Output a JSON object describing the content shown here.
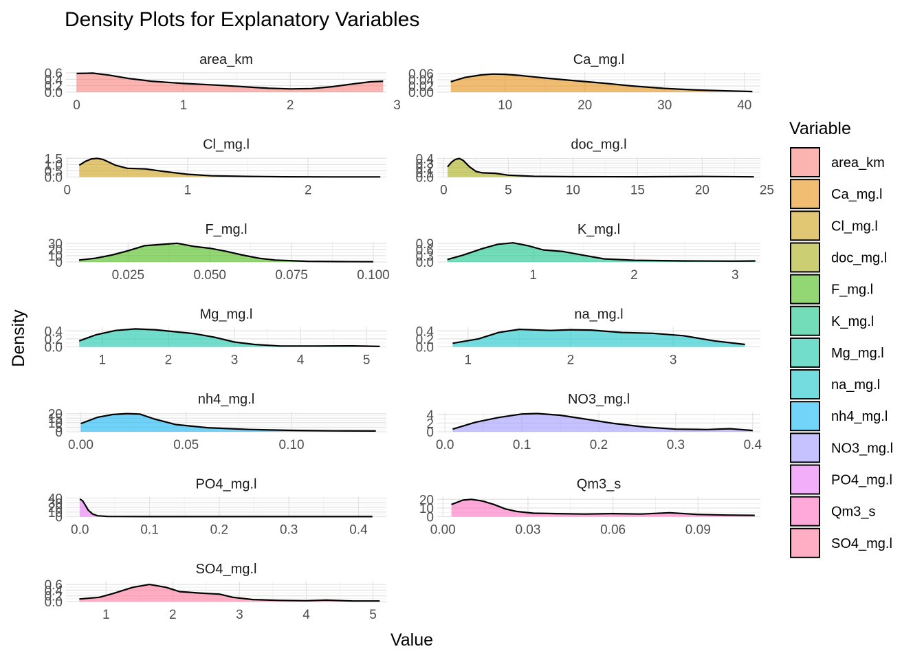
{
  "chart_data": {
    "type": "area",
    "title": "Density Plots for Explanatory Variables",
    "xlabel": "Value",
    "ylabel": "Density",
    "legend": {
      "title": "Variable",
      "position": "right"
    },
    "grid": true,
    "panels": [
      {
        "name": "area_km",
        "color": "#F8766D",
        "xlim": [
          -0.1,
          2.9
        ],
        "ylim": [
          0,
          0.62
        ],
        "xticks": [
          {
            "v": 0,
            "label": "0"
          },
          {
            "v": 1,
            "label": "1"
          },
          {
            "v": 2,
            "label": "2"
          },
          {
            "v": 3,
            "label": "3"
          }
        ],
        "yticks": [
          {
            "v": 0,
            "label": "0.0"
          },
          {
            "v": 0.2,
            "label": "0.2"
          },
          {
            "v": 0.4,
            "label": "0.4"
          },
          {
            "v": 0.6,
            "label": "0.6"
          }
        ],
        "x": [
          0,
          0.15,
          0.3,
          0.5,
          0.7,
          1.0,
          1.3,
          1.6,
          1.8,
          2.0,
          2.2,
          2.4,
          2.6,
          2.75,
          2.87
        ],
        "y": [
          0.58,
          0.59,
          0.53,
          0.42,
          0.34,
          0.27,
          0.22,
          0.16,
          0.12,
          0.1,
          0.11,
          0.17,
          0.26,
          0.32,
          0.34
        ]
      },
      {
        "name": "Ca_mg.l",
        "color": "#E58700",
        "xlim": [
          1.5,
          42
        ],
        "ylim": [
          0,
          0.065
        ],
        "xticks": [
          {
            "v": 10,
            "label": "10"
          },
          {
            "v": 20,
            "label": "20"
          },
          {
            "v": 30,
            "label": "30"
          },
          {
            "v": 40,
            "label": "40"
          }
        ],
        "yticks": [
          {
            "v": 0,
            "label": "0.00"
          },
          {
            "v": 0.02,
            "label": "0.02"
          },
          {
            "v": 0.04,
            "label": "0.04"
          },
          {
            "v": 0.06,
            "label": "0.06"
          }
        ],
        "x": [
          3.2,
          5,
          7,
          8.5,
          10,
          12,
          15,
          18,
          22,
          26,
          30,
          34,
          38,
          41
        ],
        "y": [
          0.034,
          0.048,
          0.056,
          0.059,
          0.058,
          0.054,
          0.046,
          0.039,
          0.03,
          0.02,
          0.012,
          0.007,
          0.004,
          0.002
        ]
      },
      {
        "name": "Cl_mg.l",
        "color": "#C99800",
        "xlim": [
          -0.01,
          2.65
        ],
        "ylim": [
          0,
          1.6
        ],
        "xticks": [
          {
            "v": 0,
            "label": "0"
          },
          {
            "v": 1,
            "label": "1"
          },
          {
            "v": 2,
            "label": "2"
          }
        ],
        "yticks": [
          {
            "v": 0,
            "label": "0.0"
          },
          {
            "v": 0.5,
            "label": "0.5"
          },
          {
            "v": 1.0,
            "label": "1.0"
          },
          {
            "v": 1.5,
            "label": "1.5"
          }
        ],
        "x": [
          0.1,
          0.15,
          0.2,
          0.25,
          0.3,
          0.4,
          0.5,
          0.65,
          0.8,
          1.0,
          1.2,
          1.5,
          1.8,
          2.2,
          2.6
        ],
        "y": [
          0.95,
          1.25,
          1.45,
          1.5,
          1.4,
          0.95,
          0.7,
          0.65,
          0.45,
          0.22,
          0.1,
          0.05,
          0.02,
          0.01,
          0.01
        ]
      },
      {
        "name": "doc_mg.l",
        "color": "#A3A500",
        "xlim": [
          -0.5,
          24.5
        ],
        "ylim": [
          0,
          0.43
        ],
        "xticks": [
          {
            "v": 0,
            "label": "0"
          },
          {
            "v": 5,
            "label": "5"
          },
          {
            "v": 10,
            "label": "10"
          },
          {
            "v": 15,
            "label": "15"
          },
          {
            "v": 20,
            "label": "20"
          },
          {
            "v": 25,
            "label": "25"
          }
        ],
        "yticks": [
          {
            "v": 0,
            "label": "0.0"
          },
          {
            "v": 0.1,
            "label": "0.1"
          },
          {
            "v": 0.2,
            "label": "0.2"
          },
          {
            "v": 0.3,
            "label": "0.3"
          },
          {
            "v": 0.4,
            "label": "0.4"
          }
        ],
        "x": [
          0.3,
          0.6,
          0.9,
          1.2,
          1.5,
          2.0,
          2.5,
          3.0,
          4.0,
          5.0,
          7.0,
          10.0,
          15.0,
          20.0,
          24.0
        ],
        "y": [
          0.22,
          0.32,
          0.38,
          0.4,
          0.36,
          0.22,
          0.12,
          0.09,
          0.08,
          0.04,
          0.015,
          0.008,
          0.006,
          0.012,
          0.004
        ]
      },
      {
        "name": "F_mg.l",
        "color": "#39B600",
        "xlim": [
          0.006,
          0.104
        ],
        "ylim": [
          0,
          32
        ],
        "xticks": [
          {
            "v": 0.025,
            "label": "0.025"
          },
          {
            "v": 0.05,
            "label": "0.050"
          },
          {
            "v": 0.075,
            "label": "0.075"
          },
          {
            "v": 0.1,
            "label": "0.100"
          }
        ],
        "yticks": [
          {
            "v": 0,
            "label": "0"
          },
          {
            "v": 10,
            "label": "10"
          },
          {
            "v": 20,
            "label": "20"
          },
          {
            "v": 30,
            "label": "30"
          }
        ],
        "x": [
          0.01,
          0.015,
          0.02,
          0.025,
          0.03,
          0.035,
          0.04,
          0.045,
          0.05,
          0.055,
          0.06,
          0.065,
          0.07,
          0.08,
          0.09,
          0.1
        ],
        "y": [
          3,
          6,
          11,
          18,
          26,
          28,
          30,
          25,
          22,
          17,
          11,
          6,
          3,
          1,
          0.5,
          0.3
        ]
      },
      {
        "name": "K_mg.l",
        "color": "#00BF7D",
        "xlim": [
          0.05,
          3.25
        ],
        "ylim": [
          0,
          0.96
        ],
        "xticks": [
          {
            "v": 1,
            "label": "1"
          },
          {
            "v": 2,
            "label": "2"
          },
          {
            "v": 3,
            "label": "3"
          }
        ],
        "yticks": [
          {
            "v": 0,
            "label": "0.0"
          },
          {
            "v": 0.3,
            "label": "0.3"
          },
          {
            "v": 0.6,
            "label": "0.6"
          },
          {
            "v": 0.9,
            "label": "0.9"
          }
        ],
        "x": [
          0.15,
          0.3,
          0.5,
          0.65,
          0.8,
          0.95,
          1.1,
          1.3,
          1.5,
          1.7,
          2.0,
          2.5,
          3.0,
          3.2
        ],
        "y": [
          0.12,
          0.32,
          0.65,
          0.85,
          0.92,
          0.78,
          0.58,
          0.5,
          0.32,
          0.15,
          0.08,
          0.05,
          0.04,
          0.05
        ]
      },
      {
        "name": "Mg_mg.l",
        "color": "#00C1A3",
        "xlim": [
          0.45,
          5.3
        ],
        "ylim": [
          0,
          0.5
        ],
        "xticks": [
          {
            "v": 1,
            "label": "1"
          },
          {
            "v": 2,
            "label": "2"
          },
          {
            "v": 3,
            "label": "3"
          },
          {
            "v": 4,
            "label": "4"
          },
          {
            "v": 5,
            "label": "5"
          }
        ],
        "yticks": [
          {
            "v": 0,
            "label": "0.0"
          },
          {
            "v": 0.2,
            "label": "0.2"
          },
          {
            "v": 0.4,
            "label": "0.4"
          }
        ],
        "x": [
          0.65,
          0.9,
          1.2,
          1.5,
          1.8,
          2.1,
          2.4,
          2.7,
          3.0,
          3.3,
          3.7,
          4.2,
          4.8,
          5.2
        ],
        "y": [
          0.15,
          0.3,
          0.41,
          0.45,
          0.43,
          0.38,
          0.33,
          0.24,
          0.12,
          0.06,
          0.02,
          0.02,
          0.025,
          0.01
        ]
      },
      {
        "name": "na_mg.l",
        "color": "#00BFC4",
        "xlim": [
          0.7,
          3.85
        ],
        "ylim": [
          0,
          0.5
        ],
        "xticks": [
          {
            "v": 1,
            "label": "1"
          },
          {
            "v": 2,
            "label": "2"
          },
          {
            "v": 3,
            "label": "3"
          }
        ],
        "yticks": [
          {
            "v": 0,
            "label": "0.0"
          },
          {
            "v": 0.2,
            "label": "0.2"
          },
          {
            "v": 0.4,
            "label": "0.4"
          }
        ],
        "x": [
          0.85,
          1.1,
          1.3,
          1.5,
          1.8,
          2.0,
          2.2,
          2.5,
          2.8,
          3.1,
          3.4,
          3.7
        ],
        "y": [
          0.09,
          0.2,
          0.36,
          0.44,
          0.41,
          0.43,
          0.42,
          0.36,
          0.34,
          0.28,
          0.15,
          0.06
        ]
      },
      {
        "name": "nh4_mg.l",
        "color": "#00B0F6",
        "xlim": [
          -0.007,
          0.145
        ],
        "ylim": [
          0,
          22
        ],
        "xticks": [
          {
            "v": 0,
            "label": "0.00"
          },
          {
            "v": 0.05,
            "label": "0.05"
          },
          {
            "v": 0.1,
            "label": "0.10"
          }
        ],
        "yticks": [
          {
            "v": 0,
            "label": "0"
          },
          {
            "v": 5,
            "label": "5"
          },
          {
            "v": 10,
            "label": "10"
          },
          {
            "v": 15,
            "label": "15"
          },
          {
            "v": 20,
            "label": "20"
          }
        ],
        "x": [
          0,
          0.008,
          0.015,
          0.022,
          0.028,
          0.035,
          0.045,
          0.06,
          0.08,
          0.1,
          0.12,
          0.14
        ],
        "y": [
          9,
          16,
          19,
          20,
          19.5,
          14,
          8,
          4.5,
          2.5,
          1.5,
          1,
          0.8
        ]
      },
      {
        "name": "NO3_mg.l",
        "color": "#9590FF",
        "xlim": [
          -0.01,
          0.41
        ],
        "ylim": [
          0,
          4.6
        ],
        "xticks": [
          {
            "v": 0,
            "label": "0.0"
          },
          {
            "v": 0.1,
            "label": "0.1"
          },
          {
            "v": 0.2,
            "label": "0.2"
          },
          {
            "v": 0.3,
            "label": "0.3"
          },
          {
            "v": 0.4,
            "label": "0.4"
          }
        ],
        "yticks": [
          {
            "v": 0,
            "label": "0"
          },
          {
            "v": 2,
            "label": "2"
          },
          {
            "v": 4,
            "label": "4"
          }
        ],
        "x": [
          0.01,
          0.04,
          0.07,
          0.1,
          0.12,
          0.15,
          0.18,
          0.22,
          0.26,
          0.3,
          0.34,
          0.37,
          0.4
        ],
        "y": [
          0.6,
          2.2,
          3.3,
          4.1,
          4.2,
          3.8,
          3.0,
          1.9,
          1.1,
          0.6,
          0.5,
          0.7,
          0.3
        ]
      },
      {
        "name": "PO4_mg.l",
        "color": "#E76BF3",
        "xlim": [
          -0.02,
          0.44
        ],
        "ylim": [
          0,
          43
        ],
        "xticks": [
          {
            "v": 0,
            "label": "0.0"
          },
          {
            "v": 0.1,
            "label": "0.1"
          },
          {
            "v": 0.2,
            "label": "0.2"
          },
          {
            "v": 0.3,
            "label": "0.3"
          },
          {
            "v": 0.4,
            "label": "0.4"
          }
        ],
        "yticks": [
          {
            "v": 0,
            "label": "0"
          },
          {
            "v": 10,
            "label": "10"
          },
          {
            "v": 20,
            "label": "20"
          },
          {
            "v": 30,
            "label": "30"
          },
          {
            "v": 40,
            "label": "40"
          }
        ],
        "x": [
          0,
          0.004,
          0.008,
          0.012,
          0.018,
          0.025,
          0.04,
          0.1,
          0.2,
          0.3,
          0.42
        ],
        "y": [
          38,
          34,
          24,
          14,
          6,
          2,
          0.5,
          0.2,
          0.1,
          0.1,
          0.1
        ]
      },
      {
        "name": "Qm3_s",
        "color": "#FF62BC",
        "xlim": [
          -0.002,
          0.112
        ],
        "ylim": [
          0,
          23
        ],
        "xticks": [
          {
            "v": 0,
            "label": "0.00"
          },
          {
            "v": 0.03,
            "label": "0.03"
          },
          {
            "v": 0.06,
            "label": "0.06"
          },
          {
            "v": 0.09,
            "label": "0.09"
          }
        ],
        "yticks": [
          {
            "v": 0,
            "label": "0"
          },
          {
            "v": 10,
            "label": "10"
          },
          {
            "v": 20,
            "label": "20"
          }
        ],
        "x": [
          0.003,
          0.007,
          0.01,
          0.014,
          0.018,
          0.022,
          0.026,
          0.032,
          0.04,
          0.05,
          0.06,
          0.07,
          0.08,
          0.09,
          0.1,
          0.11
        ],
        "y": [
          14,
          19,
          20,
          18,
          14,
          9,
          6,
          4,
          3.5,
          3,
          3.5,
          3,
          4.5,
          2.5,
          1.8,
          1.5
        ]
      },
      {
        "name": "SO4_mg.l",
        "color": "#FF6C91",
        "xlim": [
          0.4,
          5.2
        ],
        "ylim": [
          0,
          0.7
        ],
        "xticks": [
          {
            "v": 1,
            "label": "1"
          },
          {
            "v": 2,
            "label": "2"
          },
          {
            "v": 3,
            "label": "3"
          },
          {
            "v": 4,
            "label": "4"
          },
          {
            "v": 5,
            "label": "5"
          }
        ],
        "yticks": [
          {
            "v": 0,
            "label": "0.0"
          },
          {
            "v": 0.2,
            "label": "0.2"
          },
          {
            "v": 0.4,
            "label": "0.4"
          },
          {
            "v": 0.6,
            "label": "0.6"
          }
        ],
        "x": [
          0.6,
          0.9,
          1.1,
          1.4,
          1.65,
          1.9,
          2.1,
          2.4,
          2.7,
          2.9,
          3.2,
          3.6,
          4.0,
          4.3,
          4.7,
          5.1
        ],
        "y": [
          0.09,
          0.15,
          0.28,
          0.5,
          0.6,
          0.5,
          0.35,
          0.3,
          0.26,
          0.15,
          0.07,
          0.04,
          0.03,
          0.05,
          0.02,
          0.02
        ]
      }
    ]
  }
}
